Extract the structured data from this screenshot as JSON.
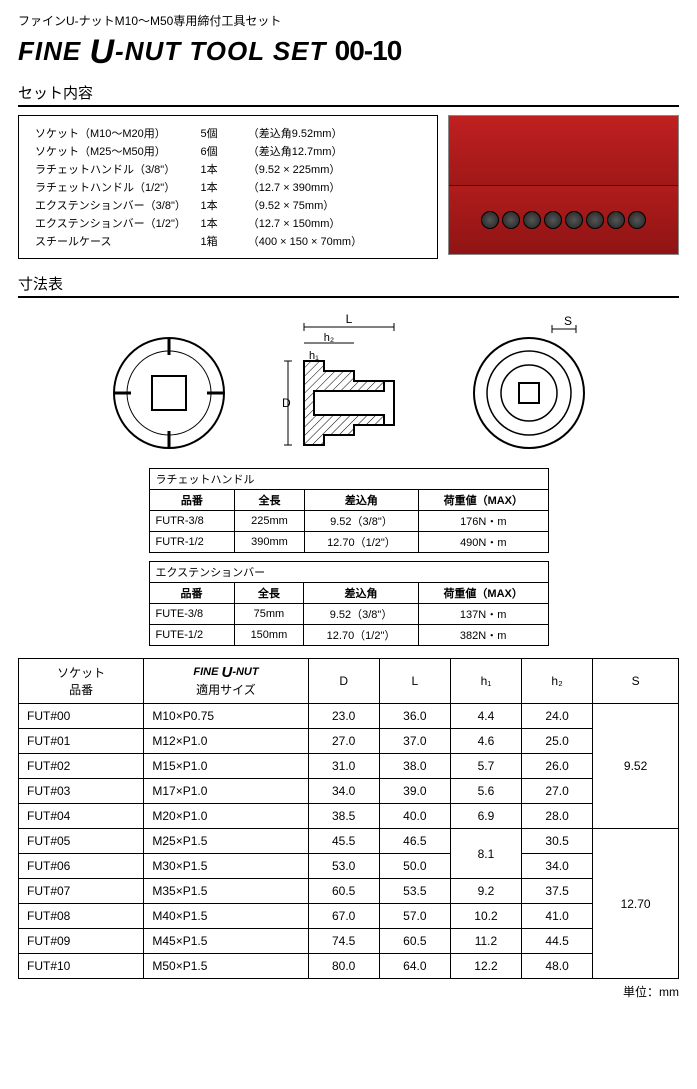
{
  "header": {
    "subtitle": "ファインU-ナットM10〜M50専用締付工具セット",
    "title_prefix": "FINE",
    "title_u": "U",
    "title_suffix": "-NUT TOOL SET",
    "title_code": "00-10"
  },
  "contents": {
    "heading": "セット内容",
    "rows": [
      {
        "name": "ソケット（M10〜M20用）",
        "qty": "5個",
        "spec": "（差込角9.52mm）"
      },
      {
        "name": "ソケット（M25〜M50用）",
        "qty": "6個",
        "spec": "（差込角12.7mm）"
      },
      {
        "name": "ラチェットハンドル（3/8\"）",
        "qty": "1本",
        "spec": "（9.52 × 225mm）"
      },
      {
        "name": "ラチェットハンドル（1/2\"）",
        "qty": "1本",
        "spec": "（12.7 × 390mm）"
      },
      {
        "name": "エクステンションバー（3/8\"）",
        "qty": "1本",
        "spec": "（9.52 × 75mm）"
      },
      {
        "name": "エクステンションバー（1/2\"）",
        "qty": "1本",
        "spec": "（12.7 × 150mm）"
      },
      {
        "name": "スチールケース",
        "qty": "1箱",
        "spec": "（400 × 150 × 70mm）"
      }
    ]
  },
  "dimtable_heading": "寸法表",
  "diagram_labels": {
    "L": "L",
    "h1": "h₁",
    "h2": "h₂",
    "D": "D",
    "S": "S"
  },
  "ratchet": {
    "title": "ラチェットハンドル",
    "columns": [
      "品番",
      "全長",
      "差込角",
      "荷重値（MAX）"
    ],
    "rows": [
      {
        "part": "FUTR-3/8",
        "len": "225mm",
        "angle": "9.52（3/8\"）",
        "load": "176N・m"
      },
      {
        "part": "FUTR-1/2",
        "len": "390mm",
        "angle": "12.70（1/2\"）",
        "load": "490N・m"
      }
    ]
  },
  "extension": {
    "title": "エクステンションバー",
    "columns": [
      "品番",
      "全長",
      "差込角",
      "荷重値（MAX）"
    ],
    "rows": [
      {
        "part": "FUTE-3/8",
        "len": "75mm",
        "angle": "9.52（3/8\"）",
        "load": "137N・m"
      },
      {
        "part": "FUTE-1/2",
        "len": "150mm",
        "angle": "12.70（1/2\"）",
        "load": "382N・m"
      }
    ]
  },
  "socket_table": {
    "columns": {
      "part": "ソケット\n品番",
      "size_label": "適用サイズ",
      "brand_prefix": "FINE",
      "brand_u": "U",
      "brand_suffix": "-NUT",
      "D": "D",
      "L": "L",
      "h1": "h₁",
      "h2": "h₂",
      "S": "S"
    },
    "rows": [
      {
        "part": "FUT#00",
        "size": "M10×P0.75",
        "D": "23.0",
        "L": "36.0",
        "h1": "4.4",
        "h2": "24.0"
      },
      {
        "part": "FUT#01",
        "size": "M12×P1.0",
        "D": "27.0",
        "L": "37.0",
        "h1": "4.6",
        "h2": "25.0"
      },
      {
        "part": "FUT#02",
        "size": "M15×P1.0",
        "D": "31.0",
        "L": "38.0",
        "h1": "5.7",
        "h2": "26.0"
      },
      {
        "part": "FUT#03",
        "size": "M17×P1.0",
        "D": "34.0",
        "L": "39.0",
        "h1": "5.6",
        "h2": "27.0"
      },
      {
        "part": "FUT#04",
        "size": "M20×P1.0",
        "D": "38.5",
        "L": "40.0",
        "h1": "6.9",
        "h2": "28.0"
      },
      {
        "part": "FUT#05",
        "size": "M25×P1.5",
        "D": "45.5",
        "L": "46.5",
        "h1": "8.1",
        "h2": "30.5",
        "h1_rowspan": 2
      },
      {
        "part": "FUT#06",
        "size": "M30×P1.5",
        "D": "53.0",
        "L": "50.0",
        "h1": null,
        "h2": "34.0"
      },
      {
        "part": "FUT#07",
        "size": "M35×P1.5",
        "D": "60.5",
        "L": "53.5",
        "h1": "9.2",
        "h2": "37.5"
      },
      {
        "part": "FUT#08",
        "size": "M40×P1.5",
        "D": "67.0",
        "L": "57.0",
        "h1": "10.2",
        "h2": "41.0"
      },
      {
        "part": "FUT#09",
        "size": "M45×P1.5",
        "D": "74.5",
        "L": "60.5",
        "h1": "11.2",
        "h2": "44.5"
      },
      {
        "part": "FUT#10",
        "size": "M50×P1.5",
        "D": "80.0",
        "L": "64.0",
        "h1": "12.2",
        "h2": "48.0"
      }
    ],
    "S_values": [
      {
        "value": "9.52",
        "span": 5
      },
      {
        "value": "12.70",
        "span": 6
      }
    ]
  },
  "unit_label": "単位：mm"
}
